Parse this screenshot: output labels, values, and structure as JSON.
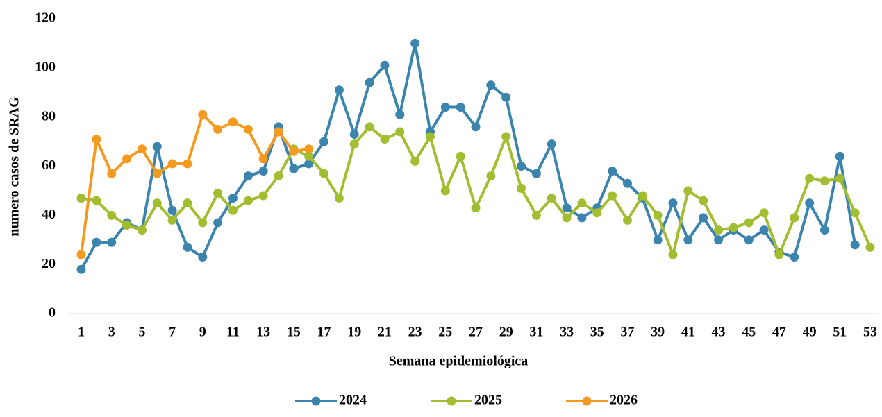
{
  "chart_data": {
    "type": "line",
    "x_label": "Semana epidemiológica",
    "y_label": "numero casos de SRAG",
    "categories": [
      "1",
      null,
      "3",
      null,
      "5",
      null,
      "7",
      null,
      "9",
      null,
      "11",
      null,
      "13",
      null,
      "15",
      null,
      "17",
      null,
      "19",
      null,
      "21",
      null,
      "23",
      null,
      "25",
      null,
      "27",
      null,
      "29",
      null,
      "31",
      null,
      "33",
      null,
      "35",
      null,
      "37",
      null,
      "39",
      null,
      "41",
      null,
      "43",
      null,
      "45",
      null,
      "47",
      null,
      "49",
      null,
      "51",
      null,
      "53"
    ],
    "ylim": [
      0,
      120
    ],
    "yticks": [
      0,
      20,
      40,
      60,
      80,
      100,
      120
    ],
    "grid": false,
    "legend": "bottom",
    "series": [
      {
        "name": "2024",
        "color": "#3b84ad",
        "values": [
          18,
          29,
          29,
          37,
          34,
          68,
          42,
          27,
          23,
          37,
          47,
          56,
          58,
          76,
          59,
          61,
          70,
          91,
          73,
          94,
          101,
          81,
          110,
          74,
          84,
          84,
          76,
          93,
          88,
          60,
          57,
          69,
          43,
          39,
          43,
          58,
          53,
          47,
          30,
          45,
          30,
          39,
          30,
          34,
          30,
          34,
          25,
          23,
          45,
          34,
          64,
          28,
          null
        ]
      },
      {
        "name": "2025",
        "color": "#a3bd31",
        "values": [
          47,
          46,
          40,
          36,
          34,
          45,
          38,
          45,
          37,
          49,
          42,
          46,
          48,
          56,
          67,
          64,
          57,
          47,
          69,
          76,
          71,
          74,
          62,
          72,
          50,
          64,
          43,
          56,
          72,
          51,
          40,
          47,
          39,
          45,
          41,
          48,
          38,
          48,
          40,
          24,
          50,
          46,
          34,
          35,
          37,
          41,
          24,
          39,
          55,
          54,
          55,
          41,
          27
        ]
      },
      {
        "name": "2026",
        "color": "#f39a1f",
        "values": [
          24,
          71,
          57,
          63,
          67,
          57,
          61,
          61,
          81,
          75,
          78,
          75,
          63,
          74,
          66,
          67,
          null,
          null,
          null,
          null,
          null,
          null,
          null,
          null,
          null,
          null,
          null,
          null,
          null,
          null,
          null,
          null,
          null,
          null,
          null,
          null,
          null,
          null,
          null,
          null,
          null,
          null,
          null,
          null,
          null,
          null,
          null,
          null,
          null,
          null,
          null,
          null,
          null
        ]
      }
    ]
  }
}
